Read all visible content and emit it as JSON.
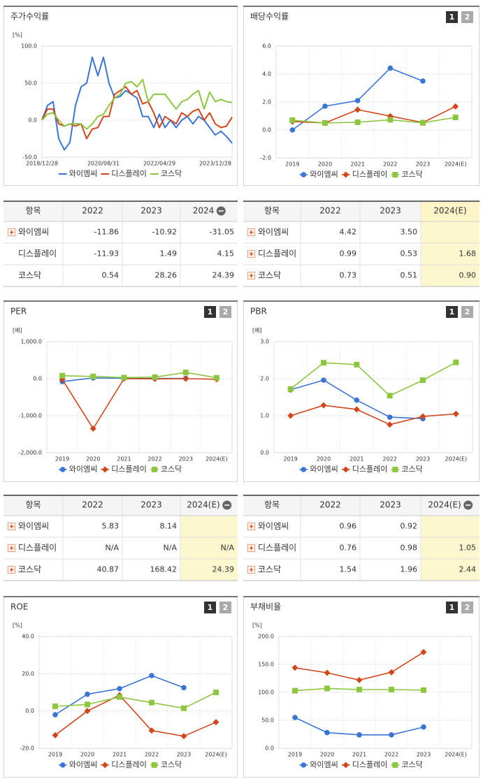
{
  "chart_data": [
    {
      "type": "line",
      "title": "주가수익률",
      "ylabel": "[%]",
      "markers": false,
      "grid": true,
      "categories": [
        "2018/12/28",
        null,
        null,
        null,
        null,
        null,
        null,
        null,
        null,
        null,
        null,
        "2020/08/31",
        null,
        null,
        null,
        null,
        null,
        null,
        null,
        null,
        null,
        "2022/04/29",
        null,
        null,
        null,
        null,
        null,
        null,
        null,
        null,
        null,
        "2023/12/28",
        null,
        null,
        null
      ],
      "ylim": [
        -50,
        100
      ],
      "yticks": [
        {
          "value": -50,
          "label": "-50.0"
        },
        {
          "value": 0,
          "label": "0.0"
        },
        {
          "value": 50,
          "label": "50.0"
        },
        {
          "value": 100,
          "label": "100.0"
        }
      ],
      "series": [
        {
          "name": "와이엠씨",
          "color": "#3a75d6",
          "values": [
            0,
            20,
            25,
            -25,
            -40,
            -30,
            20,
            45,
            50,
            85,
            60,
            85,
            50,
            30,
            32,
            40,
            35,
            30,
            5,
            5,
            -10,
            8,
            -10,
            0,
            -10,
            0,
            5,
            -5,
            5,
            0,
            -10,
            -20,
            -15,
            -22,
            -31
          ]
        },
        {
          "name": "디스플레이",
          "color": "#d2461b",
          "values": [
            0,
            15,
            15,
            -5,
            -8,
            -5,
            -8,
            -5,
            -25,
            -12,
            -10,
            5,
            5,
            35,
            40,
            45,
            35,
            40,
            22,
            25,
            10,
            -10,
            5,
            0,
            -5,
            10,
            5,
            12,
            15,
            0,
            10,
            -5,
            -10,
            -8,
            4
          ]
        },
        {
          "name": "코스닥",
          "color": "#8dc63f",
          "values": [
            0,
            8,
            10,
            0,
            -8,
            -5,
            -5,
            -5,
            -12,
            -5,
            5,
            8,
            20,
            30,
            35,
            50,
            52,
            45,
            55,
            25,
            35,
            35,
            35,
            25,
            15,
            25,
            28,
            35,
            40,
            15,
            38,
            25,
            28,
            25,
            24
          ]
        }
      ]
    },
    {
      "type": "line",
      "title": "배당수익률",
      "buttons": [
        "1",
        "2"
      ],
      "markers": true,
      "grid": true,
      "categories": [
        "2019",
        "2020",
        "2021",
        "2022",
        "2023",
        "2024(E)"
      ],
      "ylim": [
        -2,
        6
      ],
      "yticks": [
        {
          "value": -2,
          "label": "-2.0"
        },
        {
          "value": 0,
          "label": "0.0"
        },
        {
          "value": 2,
          "label": "2.0"
        },
        {
          "value": 4,
          "label": "4.0"
        },
        {
          "value": 6,
          "label": "6.0"
        }
      ],
      "series": [
        {
          "name": "와이엠씨",
          "color": "#3a75d6",
          "marker": "circle",
          "values": [
            0,
            1.7,
            2.1,
            4.42,
            3.5,
            null
          ]
        },
        {
          "name": "디스플레이",
          "color": "#d2461b",
          "marker": "diamond",
          "values": [
            0.6,
            0.5,
            1.45,
            0.99,
            0.53,
            1.68
          ]
        },
        {
          "name": "코스닥",
          "color": "#8dc63f",
          "marker": "square",
          "values": [
            0.7,
            0.5,
            0.55,
            0.73,
            0.51,
            0.9
          ]
        }
      ]
    },
    {
      "type": "line",
      "title": "PER",
      "buttons": [
        "1",
        "2"
      ],
      "ylabel": "[배]",
      "markers": true,
      "grid": true,
      "categories": [
        "2019",
        "2020",
        "2021",
        "2022",
        "2023",
        "2024(E)"
      ],
      "ylim": [
        -2000,
        1000
      ],
      "yticks": [
        {
          "value": -2000,
          "label": "-2,000.0"
        },
        {
          "value": -1000,
          "label": "-1,000.0"
        },
        {
          "value": 0,
          "label": "0.0"
        },
        {
          "value": 1000,
          "label": "1,000.0"
        }
      ],
      "series": [
        {
          "name": "와이엠씨",
          "color": "#3a75d6",
          "marker": "circle",
          "values": [
            -80,
            20,
            10,
            5.83,
            8.14,
            null
          ]
        },
        {
          "name": "디스플레이",
          "color": "#d2461b",
          "marker": "diamond",
          "values": [
            -20,
            -1350,
            0,
            -5,
            0,
            -15
          ]
        },
        {
          "name": "코스닥",
          "color": "#8dc63f",
          "marker": "square",
          "values": [
            80,
            60,
            30,
            40.87,
            168.42,
            24.39
          ]
        }
      ]
    },
    {
      "type": "line",
      "title": "PBR",
      "buttons": [
        "1",
        "2"
      ],
      "ylabel": "[배]",
      "markers": true,
      "grid": true,
      "categories": [
        "2019",
        "2020",
        "2021",
        "2022",
        "2023",
        "2024(E)"
      ],
      "ylim": [
        0,
        3
      ],
      "yticks": [
        {
          "value": 0,
          "label": "0.0"
        },
        {
          "value": 1,
          "label": "1.0"
        },
        {
          "value": 2,
          "label": "2.0"
        },
        {
          "value": 3,
          "label": "3.0"
        }
      ],
      "series": [
        {
          "name": "와이엠씨",
          "color": "#3a75d6",
          "marker": "circle",
          "values": [
            1.7,
            1.96,
            1.42,
            0.96,
            0.92,
            null
          ]
        },
        {
          "name": "디스플레이",
          "color": "#d2461b",
          "marker": "diamond",
          "values": [
            1.0,
            1.28,
            1.17,
            0.76,
            0.98,
            1.05
          ]
        },
        {
          "name": "코스닥",
          "color": "#8dc63f",
          "marker": "square",
          "values": [
            1.72,
            2.43,
            2.38,
            1.54,
            1.96,
            2.44
          ]
        }
      ]
    },
    {
      "type": "line",
      "title": "ROE",
      "buttons": [
        "1",
        "2"
      ],
      "ylabel": "[%]",
      "markers": true,
      "grid": true,
      "categories": [
        "2019",
        "2020",
        "2021",
        "2022",
        "2023",
        "2024(E)"
      ],
      "ylim": [
        -20,
        40
      ],
      "yticks": [
        {
          "value": -20,
          "label": "-20.0"
        },
        {
          "value": 0,
          "label": "0.0"
        },
        {
          "value": 20,
          "label": "20.0"
        },
        {
          "value": 40,
          "label": "40.0"
        }
      ],
      "series": [
        {
          "name": "와이엠씨",
          "color": "#3a75d6",
          "marker": "circle",
          "values": [
            -2,
            9,
            12,
            19,
            12.5,
            null
          ]
        },
        {
          "name": "디스플레이",
          "color": "#d2461b",
          "marker": "diamond",
          "values": [
            -13,
            0,
            8.5,
            -10.5,
            -13.5,
            -6
          ]
        },
        {
          "name": "코스닥",
          "color": "#8dc63f",
          "marker": "square",
          "values": [
            2.5,
            3.5,
            7.5,
            4.5,
            1.5,
            10
          ]
        }
      ]
    },
    {
      "type": "line",
      "title": "부채비율",
      "buttons": [
        "1",
        "2"
      ],
      "ylabel": "[%]",
      "markers": true,
      "grid": true,
      "categories": [
        "2019",
        "2020",
        "2021",
        "2022",
        "2023",
        "2024(E)"
      ],
      "ylim": [
        0,
        200
      ],
      "yticks": [
        {
          "value": 0,
          "label": "0.0"
        },
        {
          "value": 50,
          "label": "50.0"
        },
        {
          "value": 100,
          "label": "100.0"
        },
        {
          "value": 150,
          "label": "150.0"
        },
        {
          "value": 200,
          "label": "200.0"
        }
      ],
      "series": [
        {
          "name": "와이엠씨",
          "color": "#3a75d6",
          "marker": "circle",
          "values": [
            55,
            28,
            24,
            24,
            38,
            null
          ]
        },
        {
          "name": "디스플레이",
          "color": "#d2461b",
          "marker": "diamond",
          "values": [
            144,
            135,
            122,
            136,
            172,
            null
          ]
        },
        {
          "name": "코스닥",
          "color": "#8dc63f",
          "marker": "square",
          "values": [
            103,
            107,
            105,
            105,
            104,
            null
          ]
        }
      ]
    }
  ],
  "tables": [
    {
      "header": [
        "항목",
        "2022",
        "2023",
        "2024"
      ],
      "rows": [
        {
          "label": "와이엠씨",
          "values": [
            "-11.86",
            "-10.92",
            "-31.05"
          ]
        },
        {
          "label": "디스플레이",
          "values": [
            "-11.93",
            "1.49",
            "4.15"
          ]
        },
        {
          "label": "코스닥",
          "values": [
            "0.54",
            "28.26",
            "24.39"
          ]
        }
      ]
    },
    {
      "header": [
        "항목",
        "2022",
        "2023",
        "2024(E)"
      ],
      "rows": [
        {
          "label": "와이엠씨",
          "values": [
            "4.42",
            "3.50"
          ]
        },
        {
          "label": "디스플레이",
          "values": [
            "0.99",
            "0.53",
            "1.68"
          ]
        },
        {
          "label": "코스닥",
          "values": [
            "0.73",
            "0.51",
            "0.90"
          ]
        }
      ]
    },
    {
      "header": [
        "항목",
        "2022",
        "2023",
        "2024(E)"
      ],
      "rows": [
        {
          "label": "와이엠씨",
          "values": [
            "5.83",
            "8.14"
          ]
        },
        {
          "label": "디스플레이",
          "values": [
            "N/A",
            "N/A",
            "N/A"
          ]
        },
        {
          "label": "코스닥",
          "values": [
            "40.87",
            "168.42",
            "24.39"
          ]
        }
      ]
    },
    {
      "header": [
        "항목",
        "2022",
        "2023",
        "2024(E)"
      ],
      "rows": [
        {
          "label": "와이엠씨",
          "values": [
            "0.96",
            "0.92"
          ]
        },
        {
          "label": "디스플레이",
          "values": [
            "0.76",
            "0.98",
            "1.05"
          ]
        },
        {
          "label": "코스닥",
          "values": [
            "1.54",
            "1.96",
            "2.44"
          ]
        }
      ]
    }
  ]
}
